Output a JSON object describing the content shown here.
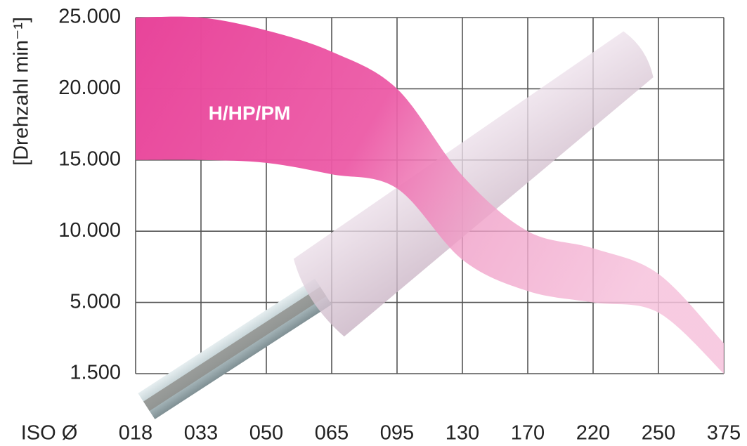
{
  "chart_data": {
    "type": "band",
    "y_label": "[Drehzahl min⁻¹]",
    "x_label": "ISO Ø",
    "categories": [
      "018",
      "033",
      "050",
      "065",
      "095",
      "130",
      "170",
      "220",
      "250",
      "375"
    ],
    "band": {
      "label": "H/HP/PM",
      "upper": [
        25000,
        25000,
        24100,
        22600,
        20000,
        13900,
        10000,
        8800,
        7000,
        3000
      ],
      "lower": [
        15000,
        15000,
        14800,
        14000,
        13000,
        8000,
        5800,
        5000,
        4500,
        1500
      ]
    },
    "ylim": [
      1500,
      25000
    ],
    "yticks": [
      {
        "value": 1500,
        "label": "1.500"
      },
      {
        "value": 5000,
        "label": "5.000"
      },
      {
        "value": 10000,
        "label": "10.000"
      },
      {
        "value": 15000,
        "label": "15.000"
      },
      {
        "value": 20000,
        "label": "20.000"
      },
      {
        "value": 25000,
        "label": "25.000"
      }
    ],
    "grid": true
  }
}
